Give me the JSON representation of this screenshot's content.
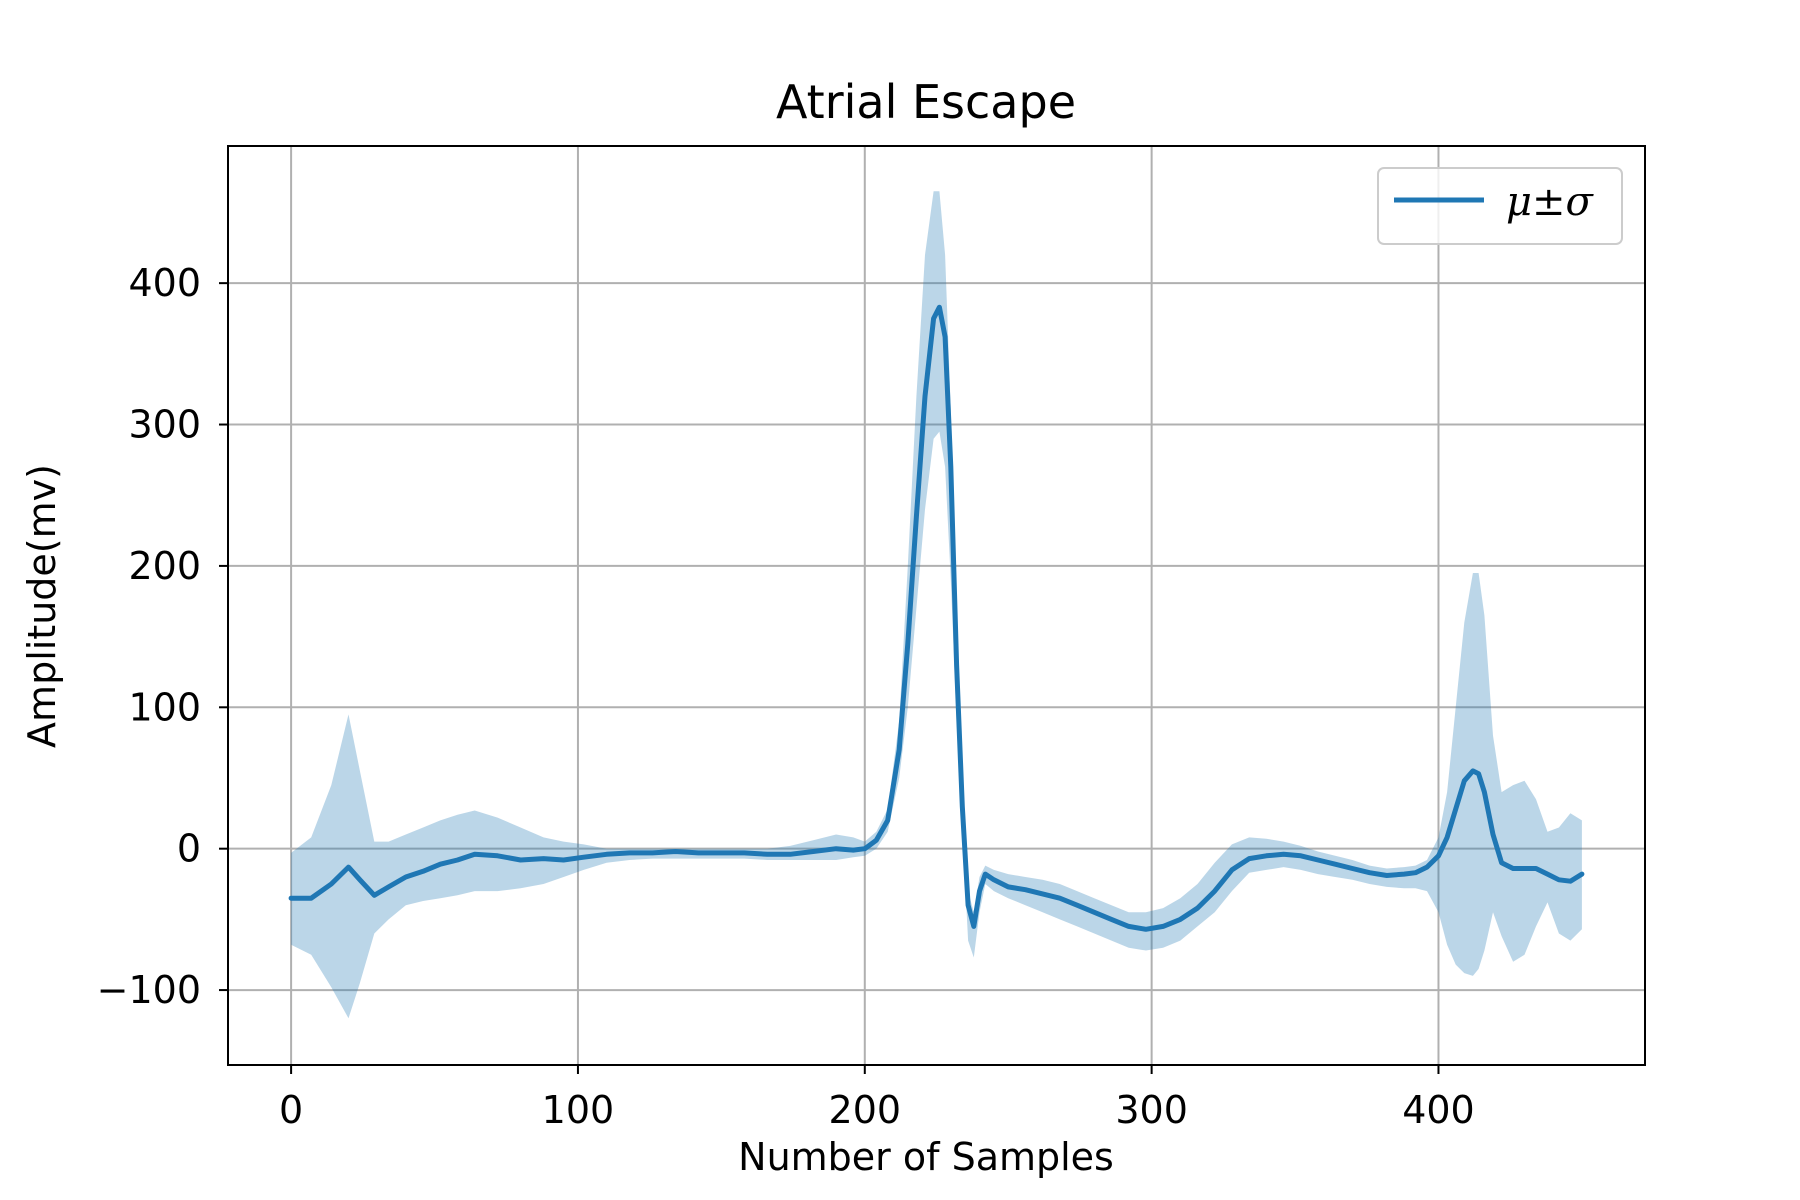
{
  "chart_data": {
    "type": "line",
    "title": "Atrial Escape",
    "xlabel": "Number of Samples",
    "ylabel": "Amplitude(mv)",
    "xlim": [
      -22,
      472
    ],
    "ylim": [
      -153,
      497
    ],
    "x_ticks": [
      0,
      100,
      200,
      300,
      400
    ],
    "y_ticks": [
      -100,
      0,
      100,
      200,
      300,
      400
    ],
    "x_tick_labels": [
      "0",
      "100",
      "200",
      "300",
      "400"
    ],
    "y_tick_labels": [
      "−100",
      "0",
      "100",
      "200",
      "300",
      "400"
    ],
    "grid": true,
    "legend_position": "top-right",
    "series": [
      {
        "name": "μ±σ",
        "color": "#1f77b4",
        "band_color": "#1f77b4",
        "x": [
          0,
          7,
          14,
          20,
          24,
          29,
          34,
          40,
          46,
          52,
          58,
          64,
          72,
          80,
          88,
          95,
          102,
          110,
          118,
          126,
          134,
          142,
          150,
          158,
          166,
          174,
          182,
          190,
          196,
          200,
          204,
          208,
          212,
          215,
          218,
          221,
          224,
          226,
          228,
          230,
          232,
          234,
          236,
          238,
          240,
          242,
          245,
          250,
          256,
          262,
          268,
          274,
          280,
          286,
          292,
          298,
          304,
          310,
          316,
          322,
          328,
          334,
          340,
          346,
          352,
          358,
          364,
          370,
          376,
          382,
          388,
          392,
          396,
          400,
          403,
          406,
          409,
          412,
          414,
          416,
          419,
          422,
          426,
          430,
          434,
          438,
          442,
          446,
          450
        ],
        "mean": [
          -35,
          -35,
          -25,
          -13,
          -22,
          -33,
          -27,
          -20,
          -16,
          -11,
          -8,
          -4,
          -5,
          -8,
          -7,
          -8,
          -6,
          -4,
          -3,
          -3,
          -2,
          -3,
          -3,
          -3,
          -4,
          -4,
          -2,
          0,
          -1,
          0,
          6,
          20,
          70,
          145,
          235,
          320,
          375,
          383,
          362,
          270,
          130,
          30,
          -40,
          -55,
          -30,
          -18,
          -22,
          -27,
          -29,
          -32,
          -35,
          -40,
          -45,
          -50,
          -55,
          -57,
          -55,
          -50,
          -42,
          -30,
          -15,
          -7,
          -5,
          -4,
          -5,
          -8,
          -11,
          -14,
          -17,
          -19,
          -18,
          -17,
          -13,
          -5,
          8,
          28,
          48,
          55,
          53,
          40,
          10,
          -10,
          -14,
          -14,
          -14,
          -18,
          -22,
          -23,
          -18
        ],
        "upper": [
          -3,
          8,
          45,
          95,
          55,
          5,
          5,
          10,
          15,
          20,
          24,
          27,
          22,
          15,
          8,
          5,
          3,
          0,
          0,
          0,
          0,
          0,
          0,
          0,
          0,
          2,
          6,
          10,
          8,
          5,
          12,
          28,
          90,
          200,
          320,
          420,
          465,
          465,
          420,
          310,
          150,
          40,
          -30,
          -45,
          -20,
          -12,
          -15,
          -18,
          -20,
          -22,
          -25,
          -30,
          -35,
          -40,
          -45,
          -45,
          -42,
          -35,
          -25,
          -10,
          3,
          8,
          7,
          5,
          2,
          -2,
          -5,
          -8,
          -12,
          -14,
          -13,
          -12,
          -8,
          8,
          40,
          100,
          160,
          195,
          195,
          165,
          80,
          40,
          45,
          48,
          35,
          12,
          15,
          25,
          20
        ],
        "lower": [
          -68,
          -75,
          -98,
          -120,
          -95,
          -60,
          -50,
          -40,
          -37,
          -35,
          -33,
          -30,
          -30,
          -28,
          -25,
          -20,
          -15,
          -10,
          -8,
          -7,
          -7,
          -7,
          -7,
          -7,
          -8,
          -8,
          -8,
          -8,
          -6,
          -5,
          0,
          12,
          50,
          100,
          170,
          240,
          290,
          295,
          270,
          190,
          90,
          15,
          -65,
          -77,
          -45,
          -25,
          -30,
          -35,
          -40,
          -45,
          -50,
          -55,
          -60,
          -65,
          -70,
          -72,
          -70,
          -65,
          -55,
          -45,
          -30,
          -17,
          -15,
          -13,
          -15,
          -18,
          -20,
          -22,
          -25,
          -27,
          -28,
          -28,
          -30,
          -45,
          -68,
          -82,
          -88,
          -90,
          -85,
          -72,
          -45,
          -62,
          -80,
          -75,
          -55,
          -38,
          -60,
          -65,
          -57
        ]
      }
    ]
  }
}
